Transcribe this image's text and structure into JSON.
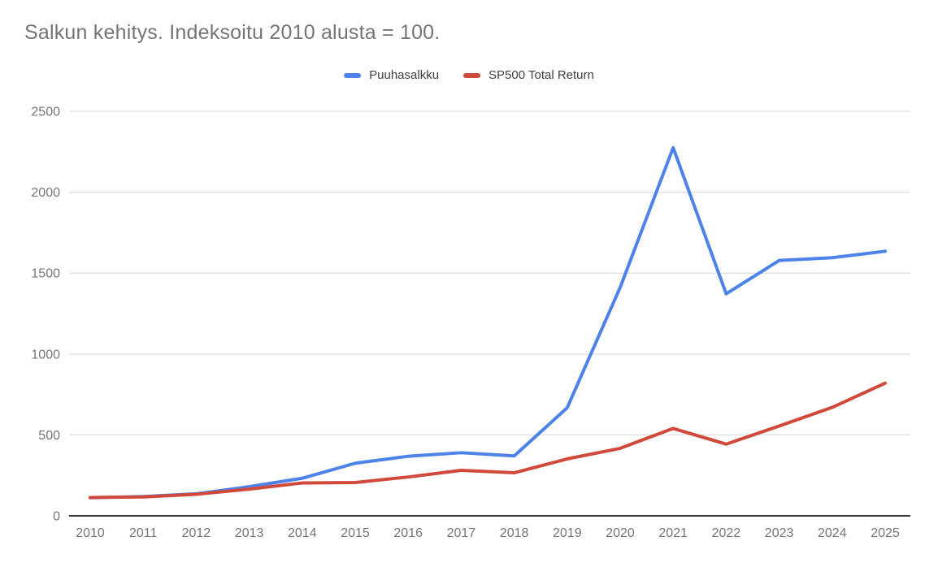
{
  "chart_data": {
    "type": "line",
    "title": "Salkun kehitys. Indeksoitu 2010 alusta = 100.",
    "xlabel": "",
    "ylabel": "",
    "categories": [
      "2010",
      "2011",
      "2012",
      "2013",
      "2014",
      "2015",
      "2016",
      "2017",
      "2018",
      "2019",
      "2020",
      "2021",
      "2022",
      "2023",
      "2024",
      "2025"
    ],
    "series": [
      {
        "name": "Puuhasalkku",
        "color": "#4d82e9",
        "values": [
          112,
          119,
          136,
          180,
          232,
          325,
          368,
          390,
          370,
          668,
          1412,
          2275,
          1372,
          1578,
          1595,
          1635
        ]
      },
      {
        "name": "SP500 Total Return",
        "color": "#d0493b",
        "values": [
          113,
          117,
          133,
          165,
          203,
          206,
          240,
          281,
          266,
          352,
          417,
          540,
          443,
          555,
          670,
          820
        ]
      }
    ],
    "ylim": [
      0,
      2500
    ],
    "yticks": [
      0,
      500,
      1000,
      1500,
      2000,
      2500
    ],
    "grid": true,
    "legend_position": "top-center"
  },
  "colors": {
    "background": "#ffffff",
    "title_text": "#757575",
    "legend_text": "#3c4043",
    "tick_label": "#757575",
    "gridline": "#e3e3e3",
    "axis_baseline": "#383838"
  }
}
